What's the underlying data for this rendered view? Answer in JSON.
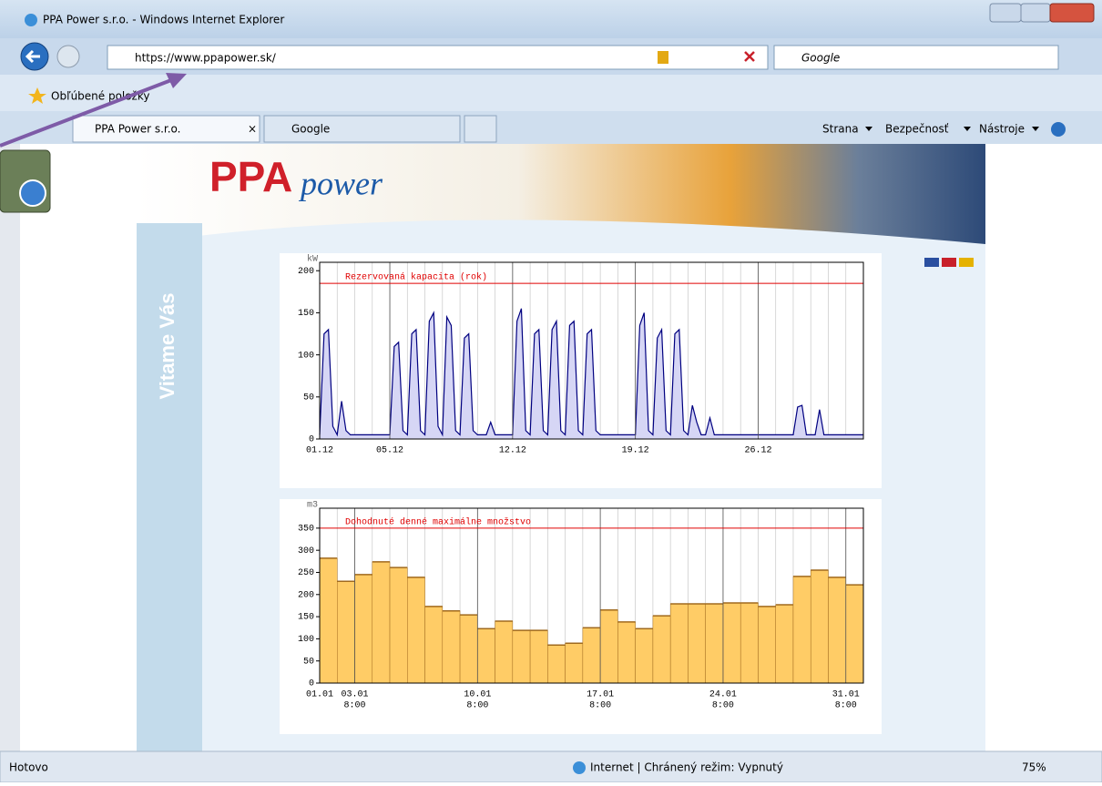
{
  "browser": {
    "window_title": "PPA Power s.r.o. - Windows Internet Explorer",
    "url": "https://www.ppapower.sk/",
    "search_placeholder": "Google",
    "favorites": "Obľúbené položky",
    "tabs": [
      "PPA Power s.r.o.",
      "Google"
    ],
    "commands": [
      "Strana",
      "Bezpečnosť",
      "Nástroje"
    ],
    "status": "Hotovo",
    "zone": "Internet | Chránený režim: Vypnutý",
    "zoom": "75%"
  },
  "page": {
    "logo_main": "PPA",
    "logo_sub": "power",
    "welcome": "Vitame Vás"
  },
  "chart_data": [
    {
      "type": "line",
      "y_unit": "kW",
      "color": "#000080",
      "fill": "#d6d6f5",
      "reference": {
        "value": 185,
        "label": "Rezervovaná kapacita (rok)"
      },
      "xlim": [
        1,
        32
      ],
      "minor_xstep": 1,
      "xticks": [
        {
          "value": 1,
          "label": "01.12"
        },
        {
          "value": 5,
          "label": "05.12"
        },
        {
          "value": 12,
          "label": "12.12"
        },
        {
          "value": 19,
          "label": "19.12"
        },
        {
          "value": 26,
          "label": "26.12"
        }
      ],
      "ylim": [
        0,
        210
      ],
      "yticks": [
        0,
        50,
        100,
        150,
        200
      ],
      "x": [
        1,
        1.25,
        1.5,
        1.75,
        2,
        2.25,
        2.5,
        2.75,
        3,
        3.25,
        3.5,
        3.75,
        4,
        4.25,
        4.5,
        4.75,
        5,
        5.25,
        5.5,
        5.75,
        6,
        6.25,
        6.5,
        6.75,
        7,
        7.25,
        7.5,
        7.75,
        8,
        8.25,
        8.5,
        8.75,
        9,
        9.25,
        9.5,
        9.75,
        10,
        10.25,
        10.5,
        10.75,
        11,
        11.25,
        11.5,
        11.75,
        12,
        12.25,
        12.5,
        12.75,
        13,
        13.25,
        13.5,
        13.75,
        14,
        14.25,
        14.5,
        14.75,
        15,
        15.25,
        15.5,
        15.75,
        16,
        16.25,
        16.5,
        16.75,
        17,
        17.25,
        17.5,
        17.75,
        18,
        18.25,
        18.5,
        18.75,
        19,
        19.25,
        19.5,
        19.75,
        20,
        20.25,
        20.5,
        20.75,
        21,
        21.25,
        21.5,
        21.75,
        22,
        22.25,
        22.5,
        22.75,
        23,
        23.25,
        23.5,
        23.75,
        24,
        24.25,
        24.5,
        24.75,
        25,
        25.25,
        25.5,
        25.75,
        26,
        26.25,
        26.5,
        26.75,
        27,
        27.25,
        27.5,
        27.75,
        28,
        28.25,
        28.5,
        28.75,
        29,
        29.25,
        29.5,
        29.75,
        30,
        30.25,
        30.5,
        30.75,
        31,
        31.25,
        31.5,
        31.75,
        32
      ],
      "values": [
        5,
        125,
        130,
        15,
        5,
        45,
        10,
        5,
        5,
        5,
        5,
        5,
        5,
        5,
        5,
        5,
        5,
        110,
        115,
        10,
        5,
        125,
        130,
        10,
        5,
        140,
        150,
        15,
        5,
        145,
        135,
        10,
        5,
        120,
        125,
        10,
        5,
        5,
        5,
        20,
        5,
        5,
        5,
        5,
        5,
        140,
        155,
        10,
        5,
        125,
        130,
        10,
        5,
        130,
        140,
        10,
        5,
        135,
        140,
        10,
        5,
        125,
        130,
        10,
        5,
        5,
        5,
        5,
        5,
        5,
        5,
        5,
        5,
        135,
        150,
        10,
        5,
        120,
        130,
        10,
        5,
        125,
        130,
        10,
        5,
        40,
        20,
        5,
        5,
        25,
        5,
        5,
        5,
        5,
        5,
        5,
        5,
        5,
        5,
        5,
        5,
        5,
        5,
        5,
        5,
        5,
        5,
        5,
        5,
        38,
        40,
        5,
        5,
        5,
        35,
        5,
        5,
        5,
        5,
        5,
        5,
        5,
        5,
        5,
        5
      ]
    },
    {
      "type": "bar",
      "y_unit": "m3",
      "color": "#ffcc66",
      "edge": "#a06a1e",
      "reference": {
        "value": 350,
        "label": "Dohodnuté denné maximálne množstvo"
      },
      "xlim": [
        1,
        32
      ],
      "minor_xstep": 1,
      "xticks": [
        {
          "value": 1,
          "label": [
            "01.01"
          ]
        },
        {
          "value": 3,
          "label": [
            "03.01",
            "8:00"
          ]
        },
        {
          "value": 10,
          "label": [
            "10.01",
            "8:00"
          ]
        },
        {
          "value": 17,
          "label": [
            "17.01",
            "8:00"
          ]
        },
        {
          "value": 24,
          "label": [
            "24.01",
            "8:00"
          ]
        },
        {
          "value": 31,
          "label": [
            "31.01",
            "8:00"
          ]
        }
      ],
      "ylim": [
        0,
        395
      ],
      "yticks": [
        0,
        50,
        100,
        150,
        200,
        250,
        300,
        350
      ],
      "x": [
        1,
        2,
        3,
        4,
        5,
        6,
        7,
        8,
        9,
        10,
        11,
        12,
        13,
        14,
        15,
        16,
        17,
        18,
        19,
        20,
        21,
        22,
        23,
        24,
        25,
        26,
        27,
        28,
        29,
        30,
        31
      ],
      "values": [
        282,
        230,
        245,
        274,
        261,
        239,
        173,
        163,
        154,
        123,
        140,
        119,
        119,
        86,
        90,
        125,
        165,
        138,
        123,
        152,
        179,
        179,
        179,
        181,
        181,
        173,
        177,
        241,
        255,
        239,
        222
      ]
    }
  ]
}
